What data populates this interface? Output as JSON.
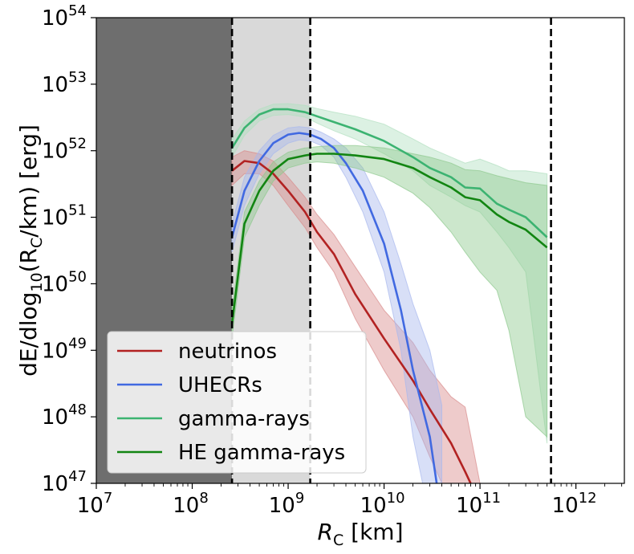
{
  "chart_data": {
    "type": "line",
    "xscale": "log",
    "yscale": "log",
    "xlim": [
      10000000.0,
      3200000000000.0
    ],
    "ylim": [
      1e+47,
      1e+54
    ],
    "xlabel": {
      "base": "R",
      "sub": "C",
      "unit": " [km]"
    },
    "ylabel": {
      "pre": "dE/dlog",
      "sub10": "10",
      "mid": "(R",
      "subC": "C",
      "post": "/km)  [erg]"
    },
    "x_ticks": [
      {
        "base": "10",
        "exp": "7",
        "value": 10000000.0
      },
      {
        "base": "10",
        "exp": "8",
        "value": 100000000.0
      },
      {
        "base": "10",
        "exp": "9",
        "value": 1000000000.0
      },
      {
        "base": "10",
        "exp": "10",
        "value": 10000000000.0
      },
      {
        "base": "10",
        "exp": "11",
        "value": 100000000000.0
      },
      {
        "base": "10",
        "exp": "12",
        "value": 1000000000000.0
      }
    ],
    "y_ticks": [
      {
        "base": "10",
        "exp": "47",
        "value": 1e+47
      },
      {
        "base": "10",
        "exp": "48",
        "value": 1e+48
      },
      {
        "base": "10",
        "exp": "49",
        "value": 1e+49
      },
      {
        "base": "10",
        "exp": "50",
        "value": 1e+50
      },
      {
        "base": "10",
        "exp": "51",
        "value": 1e+51
      },
      {
        "base": "10",
        "exp": "52",
        "value": 1e+52
      },
      {
        "base": "10",
        "exp": "53",
        "value": 1e+53
      },
      {
        "base": "10",
        "exp": "54",
        "value": 1e+54
      }
    ],
    "regions": [
      {
        "x0": 10000000.0,
        "x1": 260000000.0,
        "color": "#6e6e6e"
      },
      {
        "x0": 260000000.0,
        "x1": 1700000000.0,
        "color": "#d9d9d9"
      }
    ],
    "vlines": [
      260000000.0,
      1700000000.0,
      550000000000.0
    ],
    "legend_position": "lower-left",
    "series": [
      {
        "name": "neutrinos",
        "color": "#b22222",
        "band_color": "#d98c8c",
        "x": [
          260000000.0,
          350000000.0,
          500000000.0,
          700000000.0,
          1000000000.0,
          1500000000.0,
          2000000000.0,
          3000000000.0,
          5000000000.0,
          10000000000.0,
          20000000000.0,
          30000000000.0,
          50000000000.0,
          70000000000.0,
          100000000000.0
        ],
        "y": [
          5e+51,
          7e+51,
          6.5e+51,
          4.5e+51,
          2.5e+51,
          1.2e+51,
          6e+50,
          2.8e+50,
          7e+49,
          1.5e+49,
          3.5e+48,
          1.3e+48,
          4e+47,
          1.5e+47,
          5e+46
        ],
        "lo": [
          3e+51,
          4.5e+51,
          4.5e+51,
          3e+51,
          1.5e+51,
          7e+50,
          3.5e+50,
          1.5e+50,
          3e+49,
          5e+48,
          1e+48,
          2.5e+47,
          5e+46,
          3e+46,
          2e+46
        ],
        "hi": [
          8e+51,
          1e+52,
          9e+51,
          7e+51,
          4e+51,
          2e+51,
          1.1e+51,
          5.5e+50,
          1.8e+50,
          4e+49,
          1.3e+49,
          5e+48,
          2e+48,
          1.4e+48,
          1e+47
        ]
      },
      {
        "name": "UHECRs",
        "color": "#4169e1",
        "band_color": "#a8b8ee",
        "x": [
          260000000.0,
          350000000.0,
          500000000.0,
          700000000.0,
          1000000000.0,
          1300000000.0,
          1700000000.0,
          2200000000.0,
          3000000000.0,
          4000000000.0,
          6000000000.0,
          10000000000.0,
          15000000000.0,
          20000000000.0,
          30000000000.0,
          40000000000.0
        ],
        "y": [
          5e+50,
          2.5e+51,
          7e+51,
          1.3e+52,
          1.75e+52,
          1.85e+52,
          1.75e+52,
          1.5e+52,
          1.1e+52,
          6.5e+51,
          2.5e+51,
          4e+50,
          4e+49,
          5e+48,
          5e+47,
          3e+46
        ],
        "lo": [
          3e+50,
          1.5e+51,
          4.5e+51,
          9e+51,
          1.3e+52,
          1.45e+52,
          1.4e+52,
          1.2e+52,
          8e+51,
          4e+51,
          1.2e+51,
          1.5e+50,
          1e+49,
          5e+47,
          3e+46,
          3e+46
        ],
        "hi": [
          8e+50,
          4e+51,
          1e+52,
          1.7e+52,
          2.2e+52,
          2.3e+52,
          2.2e+52,
          1.9e+52,
          1.5e+52,
          1.1e+52,
          5.5e+51,
          1.2e+51,
          2e+50,
          5e+49,
          1e+49,
          1.5e+48
        ]
      },
      {
        "name": "gamma-rays",
        "color": "#3cb371",
        "band_color": "#b2dfc0",
        "x": [
          260000000.0,
          350000000.0,
          500000000.0,
          700000000.0,
          1000000000.0,
          1500000000.0,
          2000000000.0,
          3000000000.0,
          5000000000.0,
          10000000000.0,
          20000000000.0,
          30000000000.0,
          50000000000.0,
          70000000000.0,
          100000000000.0,
          150000000000.0,
          200000000000.0,
          300000000000.0,
          500000000000.0
        ],
        "y": [
          1.1e+52,
          2.2e+52,
          3.5e+52,
          4.2e+52,
          4.2e+52,
          3.8e+52,
          3.3e+52,
          2.7e+52,
          2.1e+52,
          1.4e+52,
          8e+51,
          5.5e+51,
          4e+51,
          2.8e+51,
          2.7e+51,
          1.6e+51,
          1.3e+51,
          1e+51,
          5e+50
        ],
        "lo": [
          8e+51,
          1.7e+52,
          2.8e+52,
          3.4e+52,
          3.5e+52,
          3.2e+52,
          2.6e+52,
          2e+52,
          1.5e+52,
          9e+51,
          5e+51,
          3e+51,
          2e+51,
          1.5e+51,
          1.2e+51,
          6e+50,
          3.5e+50,
          1.5e+50,
          4e+47
        ],
        "hi": [
          1.5e+52,
          2.8e+52,
          4.2e+52,
          5e+52,
          5.1e+52,
          4.8e+52,
          4.3e+52,
          3.8e+52,
          3.3e+52,
          2.5e+52,
          1.5e+52,
          1.1e+52,
          8e+51,
          6.5e+51,
          7.5e+51,
          6e+51,
          5e+51,
          5e+51,
          4.5e+51
        ]
      },
      {
        "name": "HE gamma-rays",
        "color": "#128512",
        "band_color": "#8fc98f",
        "x": [
          260000000.0,
          350000000.0,
          500000000.0,
          700000000.0,
          1000000000.0,
          1500000000.0,
          2000000000.0,
          3000000000.0,
          5000000000.0,
          10000000000.0,
          20000000000.0,
          30000000000.0,
          50000000000.0,
          70000000000.0,
          100000000000.0,
          150000000000.0,
          200000000000.0,
          300000000000.0,
          500000000000.0
        ],
        "y": [
          2.5e+49,
          8e+50,
          2.5e+51,
          5e+51,
          7.5e+51,
          8.5e+51,
          9e+51,
          9e+51,
          8.5e+51,
          7.5e+51,
          5.5e+51,
          4e+51,
          2.8e+51,
          2e+51,
          1.8e+51,
          1.1e+51,
          8.5e+50,
          6.5e+50,
          3.5e+50
        ],
        "lo": [
          1.5e+49,
          5e+50,
          1.5e+51,
          3.5e+51,
          5.5e+51,
          6.5e+51,
          6.8e+51,
          6.5e+51,
          5.5e+51,
          4e+51,
          2.3e+51,
          1.4e+51,
          6e+50,
          3e+50,
          1.5e+50,
          8e+49,
          2e+49,
          1e+48,
          5e+47
        ],
        "hi": [
          4e+49,
          1.2e+51,
          3.5e+51,
          6.8e+51,
          9.5e+51,
          1.1e+52,
          1.15e+52,
          1.2e+52,
          1.2e+52,
          1.1e+52,
          9e+51,
          8e+51,
          6.5e+51,
          5.2e+51,
          5e+51,
          4.2e+51,
          3.8e+51,
          3.3e+51,
          3e+51
        ]
      }
    ]
  }
}
